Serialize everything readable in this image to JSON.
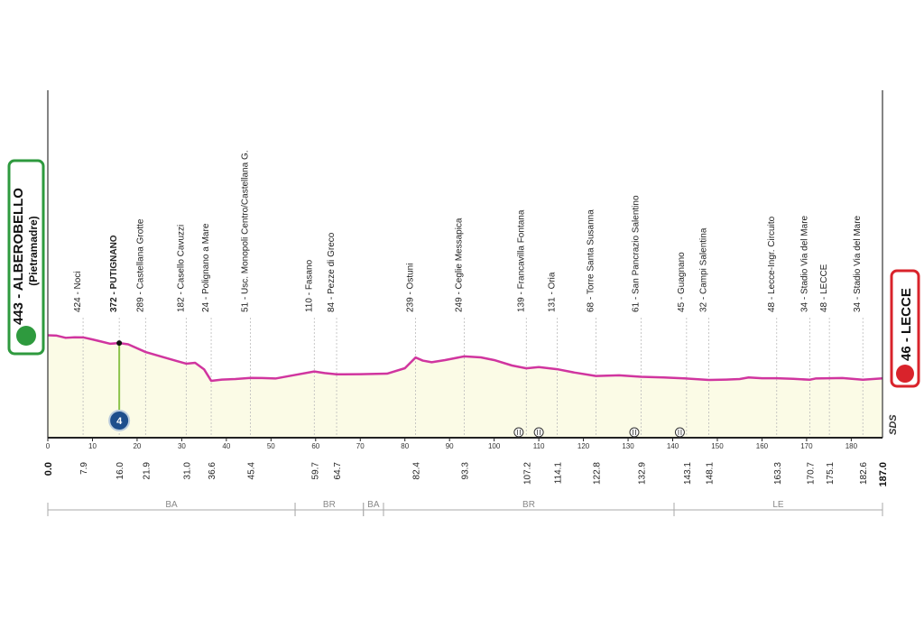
{
  "chart_data": {
    "type": "area",
    "start": {
      "label": "443 - ALBEROBELLO",
      "sublabel": "(Pietramadre)"
    },
    "finish": {
      "label": "46 - LECCE"
    },
    "x": [
      0,
      2,
      4,
      6,
      7.9,
      10,
      12,
      14,
      16,
      18,
      21.9,
      26,
      29,
      31,
      33,
      35,
      36.6,
      39,
      42,
      45.4,
      48,
      51,
      55,
      59.7,
      62,
      64.7,
      70,
      76,
      80,
      82.4,
      84,
      86,
      89,
      93.3,
      97,
      100,
      104,
      107.2,
      110,
      114.1,
      118,
      122.8,
      128,
      132.9,
      138,
      143.1,
      148.1,
      152,
      155,
      157,
      160,
      163.3,
      167,
      170.7,
      172,
      175.1,
      178,
      182.6,
      187
    ],
    "values": [
      443,
      440,
      420,
      425,
      424,
      405,
      385,
      365,
      372,
      360,
      289,
      240,
      205,
      182,
      190,
      130,
      24,
      35,
      40,
      51,
      50,
      45,
      75,
      110,
      95,
      84,
      85,
      90,
      140,
      239,
      210,
      195,
      215,
      249,
      240,
      215,
      165,
      139,
      150,
      131,
      100,
      68,
      75,
      61,
      55,
      45,
      32,
      35,
      40,
      55,
      48,
      48,
      42,
      34,
      45,
      48,
      50,
      34,
      46
    ],
    "color": "#d0359f",
    "fill": "#fbfbe6",
    "xlim": [
      0,
      187
    ],
    "xticks": [
      0,
      10,
      20,
      30,
      40,
      50,
      60,
      70,
      80,
      90,
      100,
      110,
      120,
      130,
      140,
      150,
      160,
      170,
      180
    ],
    "ylim": [
      -500,
      2700
    ],
    "yticks": [
      0,
      100,
      200,
      300,
      400
    ],
    "waypoints": [
      {
        "label": "424 - Noci",
        "km": 7.9
      },
      {
        "label": "372 - PUTIGNANO",
        "km": {
          "value": 16,
          "label": "16.0"
        },
        "bold": true
      },
      {
        "label": "289 - Castellana Grotte",
        "km": 21.9
      },
      {
        "label": "182 - Casello Cavuzzi",
        "km": {
          "value": 31,
          "label": "31.0"
        }
      },
      {
        "label": "24 - Polignano a Mare",
        "km": 36.6
      },
      {
        "label": "51 - Usc. Monopoli Centro/Castellana G.",
        "km": 45.4
      },
      {
        "label": "110 - Fasano",
        "km": 59.7
      },
      {
        "label": "84 - Pezze di Greco",
        "km": 64.7
      },
      {
        "label": "239 - Ostuni",
        "km": 82.4
      },
      {
        "label": "249 - Ceglie Messapica",
        "km": 93.3
      },
      {
        "label": "139 - Francavilla Fontana",
        "km": 107.2
      },
      {
        "label": "131 - Oria",
        "km": 114.1
      },
      {
        "label": "68 - Torre Santa Susanna",
        "km": 122.8
      },
      {
        "label": "61 - San Pancrazio Salentino",
        "km": 132.9
      },
      {
        "label": "45 - Guagnano",
        "km": 143.1
      },
      {
        "label": "32 - Campi Salentina",
        "km": 148.1
      },
      {
        "label": "48 - Lecce-Ingr. Circuito",
        "km": 163.3
      },
      {
        "label": "34 - Stadio Via del Mare",
        "km": 170.7
      },
      {
        "label": "48 - LECCE",
        "km": 175.1
      },
      {
        "label": "34 - Stadio Via del Mare",
        "km": 182.6
      }
    ],
    "start_km": {
      "value": 0,
      "label": "0.0"
    },
    "finish_km": {
      "value": 187,
      "label": "187.0"
    },
    "kom": {
      "km": 16,
      "label": "4"
    },
    "sprints": [
      105.5,
      110,
      131.4,
      141.6
    ],
    "side_label": "SDS",
    "provinces": [
      {
        "label": "BA",
        "from": 0,
        "to": 55.4
      },
      {
        "label": "BR",
        "from": 55.4,
        "to": 70.7
      },
      {
        "label": "BA",
        "from": 70.7,
        "to": 75.2
      },
      {
        "label": "BR",
        "from": 75.2,
        "to": 140.3
      },
      {
        "label": "LE",
        "from": 140.3,
        "to": 187
      }
    ]
  }
}
